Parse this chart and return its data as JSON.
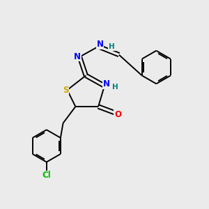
{
  "background_color": "#ebebeb",
  "atom_colors": {
    "N": "#0000ff",
    "S": "#ccaa00",
    "O": "#ff0000",
    "Cl": "#00bb00",
    "C": "#000000",
    "H": "#008080"
  },
  "figsize": [
    3.0,
    3.0
  ],
  "dpi": 100
}
